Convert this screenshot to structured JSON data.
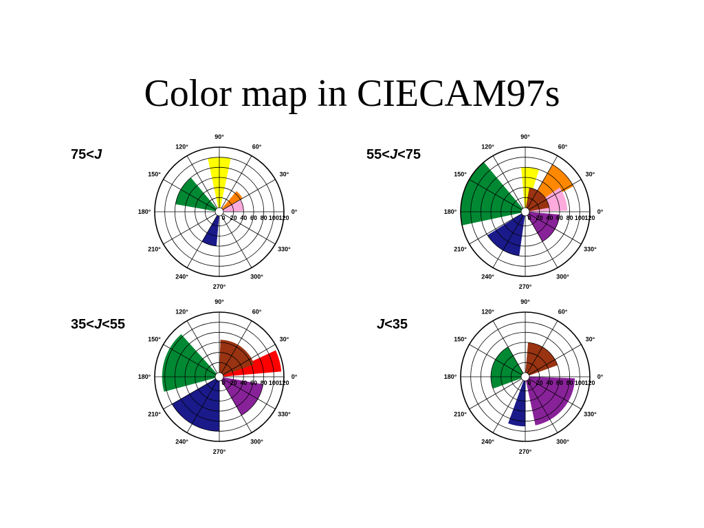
{
  "slide": {
    "title": "Color map in CIECAM97s"
  },
  "chart_data": [
    {
      "type": "polar-bar",
      "label_parts": [
        "75<",
        "J",
        ""
      ],
      "angle_ticks": [
        "0°",
        "30°",
        "60°",
        "90°",
        "120°",
        "150°",
        "180°",
        "210°",
        "240°",
        "270°",
        "300°",
        "330°"
      ],
      "radial_ticks": [
        "0",
        "20",
        "40",
        "60",
        "80",
        "100",
        "120"
      ],
      "rlim": [
        0,
        120
      ],
      "sectors": [
        {
          "start": 78,
          "end": 102,
          "r": 100,
          "color": "#ffff00"
        },
        {
          "start": 30,
          "end": 50,
          "r": 45,
          "color": "#ff8000"
        },
        {
          "start": 2,
          "end": 28,
          "r": 40,
          "color": "#ffaadd"
        },
        {
          "start": 130,
          "end": 170,
          "r": 80,
          "color": "#008833"
        },
        {
          "start": 240,
          "end": 265,
          "r": 60,
          "color": "#1a1a8a"
        }
      ]
    },
    {
      "type": "polar-bar",
      "label_parts": [
        "55<",
        "J",
        "<75"
      ],
      "angle_ticks": [
        "0°",
        "30°",
        "60°",
        "90°",
        "120°",
        "150°",
        "180°",
        "210°",
        "240°",
        "270°",
        "300°",
        "330°"
      ],
      "radial_ticks": [
        "0",
        "20",
        "40",
        "60",
        "80",
        "100",
        "120"
      ],
      "rlim": [
        0,
        120
      ],
      "sectors": [
        {
          "start": 72,
          "end": 95,
          "r": 80,
          "color": "#ffff00"
        },
        {
          "start": 28,
          "end": 60,
          "r": 100,
          "color": "#ff8800"
        },
        {
          "start": 2,
          "end": 35,
          "r": 75,
          "color": "#ffaadd"
        },
        {
          "start": 10,
          "end": 80,
          "r": 40,
          "color": "#993311"
        },
        {
          "start": 130,
          "end": 192,
          "r": 120,
          "color": "#008833"
        },
        {
          "start": 212,
          "end": 262,
          "r": 80,
          "color": "#1a1a8a"
        },
        {
          "start": 300,
          "end": 355,
          "r": 60,
          "color": "#882299"
        }
      ]
    },
    {
      "type": "polar-bar",
      "label_parts": [
        "35<",
        "J",
        "<55"
      ],
      "angle_ticks": [
        "0°",
        "30°",
        "60°",
        "90°",
        "120°",
        "150°",
        "180°",
        "210°",
        "240°",
        "270°",
        "300°",
        "330°"
      ],
      "radial_ticks": [
        "0",
        "20",
        "40",
        "60",
        "80",
        "100",
        "120"
      ],
      "rlim": [
        0,
        120
      ],
      "sectors": [
        {
          "start": 5,
          "end": 25,
          "r": 115,
          "color": "#ff0000"
        },
        {
          "start": 20,
          "end": 88,
          "r": 65,
          "color": "#993311"
        },
        {
          "start": 132,
          "end": 195,
          "r": 105,
          "color": "#008833"
        },
        {
          "start": 210,
          "end": 270,
          "r": 100,
          "color": "#1a1a8a"
        },
        {
          "start": 300,
          "end": 350,
          "r": 80,
          "color": "#882299"
        }
      ]
    },
    {
      "type": "polar-bar",
      "label_parts": [
        "",
        "J",
        "<35"
      ],
      "angle_ticks": [
        "0°",
        "30°",
        "60°",
        "90°",
        "120°",
        "150°",
        "180°",
        "210°",
        "240°",
        "270°",
        "300°",
        "330°"
      ],
      "radial_ticks": [
        "0",
        "20",
        "40",
        "60",
        "80",
        "100",
        "120"
      ],
      "rlim": [
        0,
        120
      ],
      "sectors": [
        {
          "start": 20,
          "end": 85,
          "r": 60,
          "color": "#993311"
        },
        {
          "start": 120,
          "end": 200,
          "r": 60,
          "color": "#008833"
        },
        {
          "start": 250,
          "end": 270,
          "r": 90,
          "color": "#1a1a8a"
        },
        {
          "start": 282,
          "end": 358,
          "r": 90,
          "color": "#882299"
        }
      ]
    }
  ]
}
